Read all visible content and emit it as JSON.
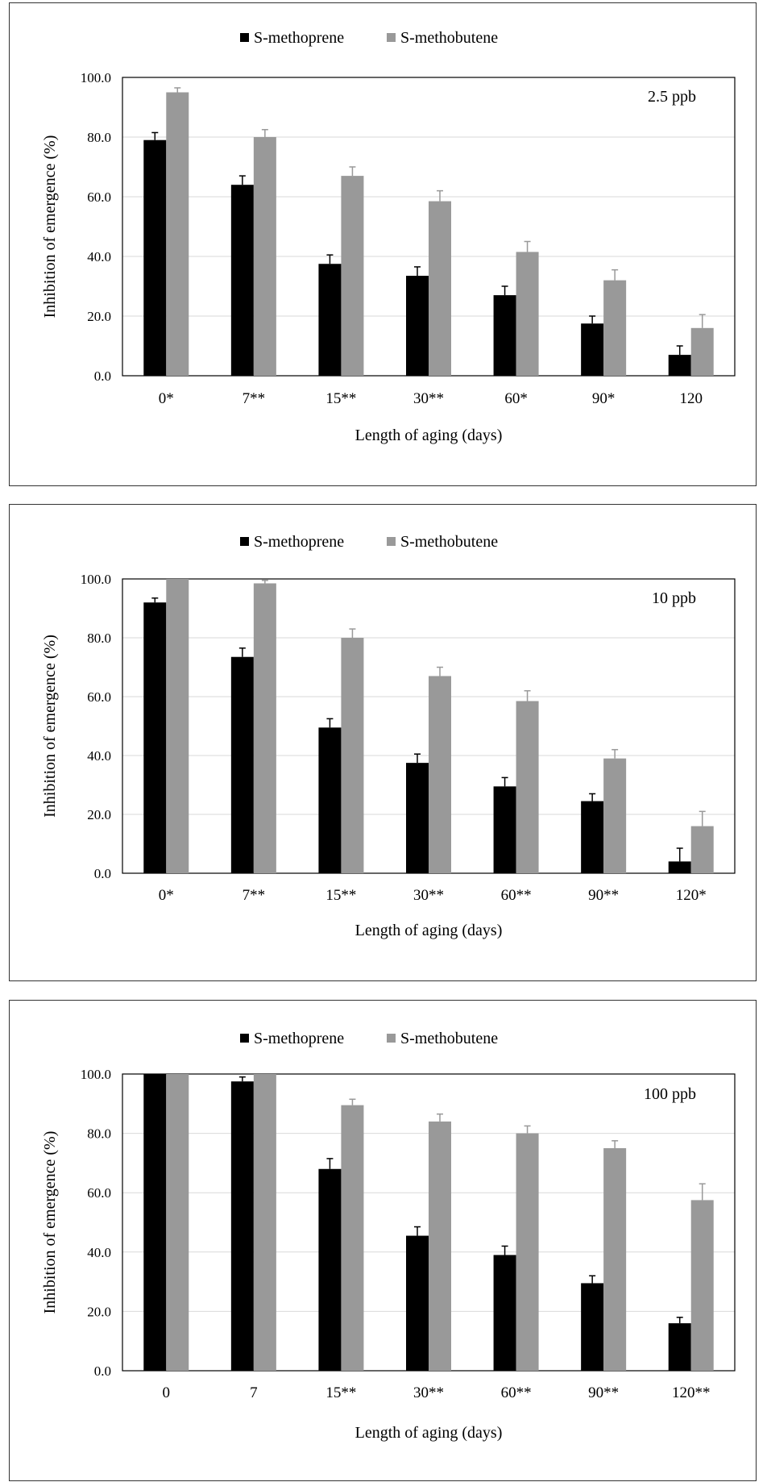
{
  "legend": {
    "series1": "S-methoprene",
    "series2": "S-methobutene"
  },
  "colors": {
    "series1": "#000000",
    "series2": "#999999",
    "grid": "#d9d9d9",
    "axis": "#000000"
  },
  "chart_data": [
    {
      "type": "bar",
      "annotation": "2.5 ppb",
      "xlabel": "Length of aging (days)",
      "ylabel": "Inhibition of emergence (%)",
      "ylim": [
        0,
        100
      ],
      "yticks": [
        "0.0",
        "20.0",
        "40.0",
        "60.0",
        "80.0",
        "100.0"
      ],
      "grid": true,
      "legend_position": "top-center",
      "categories": [
        "0*",
        "7**",
        "15**",
        "30**",
        "60*",
        "90*",
        "120"
      ],
      "series": [
        {
          "name": "S-methoprene",
          "values": [
            79,
            64,
            37.5,
            33.5,
            27,
            17.5,
            7
          ],
          "errors": [
            2.5,
            3,
            3,
            3,
            3,
            2.5,
            3
          ]
        },
        {
          "name": "S-methobutene",
          "values": [
            95,
            80,
            67,
            58.5,
            41.5,
            32,
            16
          ],
          "errors": [
            1.5,
            2.5,
            3,
            3.5,
            3.5,
            3.5,
            4.5
          ]
        }
      ]
    },
    {
      "type": "bar",
      "annotation": "10 ppb",
      "xlabel": "Length of aging (days)",
      "ylabel": "Inhibition of emergence (%)",
      "ylim": [
        0,
        100
      ],
      "yticks": [
        "0.0",
        "20.0",
        "40.0",
        "60.0",
        "80.0",
        "100.0"
      ],
      "grid": true,
      "legend_position": "top-center",
      "categories": [
        "0*",
        "7**",
        "15**",
        "30**",
        "60**",
        "90**",
        "120*"
      ],
      "series": [
        {
          "name": "S-methoprene",
          "values": [
            92,
            73.5,
            49.5,
            37.5,
            29.5,
            24.5,
            4
          ],
          "errors": [
            1.5,
            3,
            3,
            3,
            3,
            2.5,
            4.5
          ]
        },
        {
          "name": "S-methobutene",
          "values": [
            100,
            98.5,
            80,
            67,
            58.5,
            39,
            16
          ],
          "errors": [
            0,
            1,
            3,
            3,
            3.5,
            3,
            5
          ]
        }
      ]
    },
    {
      "type": "bar",
      "annotation": "100 ppb",
      "xlabel": "Length of aging (days)",
      "ylabel": "Inhibition of emergence (%)",
      "ylim": [
        0,
        100
      ],
      "yticks": [
        "0.0",
        "20.0",
        "40.0",
        "60.0",
        "80.0",
        "100.0"
      ],
      "grid": true,
      "legend_position": "top-center",
      "categories": [
        "0",
        "7",
        "15**",
        "30**",
        "60**",
        "90**",
        "120**"
      ],
      "series": [
        {
          "name": "S-methoprene",
          "values": [
            100,
            97.5,
            68,
            45.5,
            39,
            29.5,
            16
          ],
          "errors": [
            0,
            1.5,
            3.5,
            3,
            3,
            2.5,
            2
          ]
        },
        {
          "name": "S-methobutene",
          "values": [
            100,
            100,
            89.5,
            84,
            80,
            75,
            57.5
          ],
          "errors": [
            0,
            0,
            2,
            2.5,
            2.5,
            2.5,
            5.5
          ]
        }
      ]
    }
  ]
}
